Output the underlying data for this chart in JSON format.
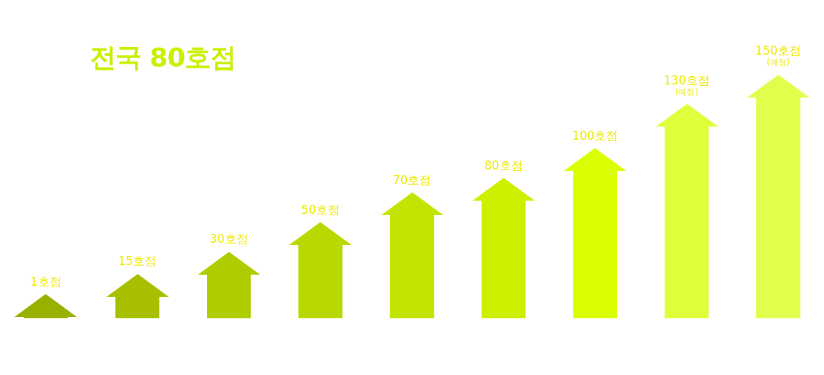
{
  "chart_data": {
    "type": "bar",
    "title": "전국 80호점",
    "categories": [
      null,
      null,
      null,
      null,
      null,
      null,
      null,
      null,
      null
    ],
    "values": [
      1,
      15,
      30,
      50,
      70,
      80,
      100,
      130,
      150
    ],
    "colors": [
      "#9ab000",
      "#a8bf00",
      "#afcc00",
      "#b8d800",
      "#c3e400",
      "#cfef00",
      "#d9ff00",
      "#e0ff3a",
      "#e0ff4c"
    ],
    "value_labels": [
      "1호점",
      "15호점",
      "30호점",
      "50호점",
      "70호점",
      "80호점",
      "100호점",
      "130호점\n(예정)",
      "150호점\n(예정)"
    ],
    "ylim": [
      0,
      150
    ]
  }
}
